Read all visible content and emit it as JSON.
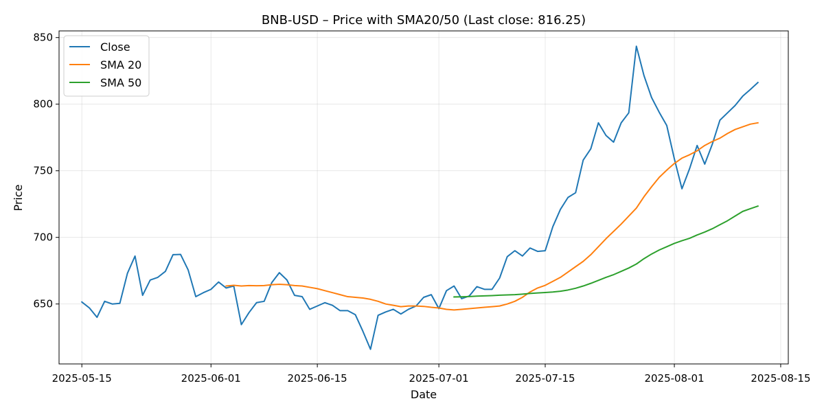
{
  "chart_data": {
    "type": "line",
    "title": "BNB-USD – Price with SMA20/50 (Last close: 816.25)",
    "xlabel": "Date",
    "ylabel": "Price",
    "xlim": [
      "2025-05-12",
      "2025-08-16"
    ],
    "ylim": [
      605,
      855
    ],
    "x_ticks": [
      "2025-05-15",
      "2025-06-01",
      "2025-06-15",
      "2025-07-01",
      "2025-07-15",
      "2025-08-01",
      "2025-08-15"
    ],
    "y_ticks": [
      650,
      700,
      750,
      800,
      850
    ],
    "grid": true,
    "legend_position": "top-left",
    "start_date": "2025-05-15",
    "series": [
      {
        "name": "Close",
        "color": "#1f77b4",
        "values": [
          651.5,
          647,
          640,
          652,
          650,
          650.5,
          673,
          686,
          656.5,
          668,
          670,
          674.5,
          687,
          687.2,
          675.5,
          655.5,
          658.5,
          661,
          666.5,
          662,
          663.5,
          634.5,
          643.5,
          651,
          652,
          666,
          673.5,
          668,
          656.5,
          655.5,
          646,
          648.5,
          651,
          649,
          645,
          645,
          642,
          629.5,
          616,
          641.5,
          644,
          646,
          642.5,
          646,
          648.5,
          655,
          657,
          646.5,
          660,
          663.5,
          654,
          656,
          663,
          661,
          661,
          669.5,
          685.5,
          690,
          686,
          692,
          689.5,
          690,
          708,
          721,
          730,
          733.5,
          758,
          766.5,
          786,
          776.5,
          771.5,
          786,
          793.5,
          843.5,
          821.5,
          805,
          794,
          784,
          759,
          736.5,
          751.5,
          769,
          755,
          770,
          788,
          793.5,
          799,
          806,
          811,
          816.25
        ]
      },
      {
        "name": "SMA 20",
        "color": "#ff7f0e",
        "values": [
          null,
          null,
          null,
          null,
          null,
          null,
          null,
          null,
          null,
          null,
          null,
          null,
          null,
          null,
          null,
          null,
          null,
          null,
          null,
          663.5,
          664,
          663.5,
          663.8,
          663.7,
          663.8,
          664.5,
          664.8,
          664.5,
          663.8,
          663.5,
          662.5,
          661.5,
          660,
          658.5,
          657,
          655.5,
          655,
          654.5,
          653.5,
          652,
          650,
          649,
          648,
          648.5,
          648.5,
          648.2,
          647.5,
          647,
          646,
          645.5,
          646,
          646.5,
          647,
          647.5,
          648,
          648.5,
          650,
          652,
          655,
          659,
          662,
          664,
          667,
          670,
          674,
          678,
          682,
          687,
          693,
          699,
          704.5,
          710,
          716,
          722,
          730.5,
          738,
          745,
          750.5,
          755.5,
          759.5,
          762,
          765,
          769,
          772,
          774.5,
          778,
          781,
          783,
          785,
          786
        ]
      },
      {
        "name": "SMA 50",
        "color": "#2ca02c",
        "values": [
          null,
          null,
          null,
          null,
          null,
          null,
          null,
          null,
          null,
          null,
          null,
          null,
          null,
          null,
          null,
          null,
          null,
          null,
          null,
          null,
          null,
          null,
          null,
          null,
          null,
          null,
          null,
          null,
          null,
          null,
          null,
          null,
          null,
          null,
          null,
          null,
          null,
          null,
          null,
          null,
          null,
          null,
          null,
          null,
          null,
          null,
          null,
          null,
          null,
          655.3,
          655.4,
          655.6,
          655.9,
          656.1,
          656.3,
          656.6,
          656.8,
          657,
          657.4,
          657.9,
          658.3,
          658.6,
          659,
          659.6,
          660.5,
          661.8,
          663.5,
          665.5,
          667.7,
          670,
          672,
          674.5,
          677,
          680,
          684,
          687.5,
          690.5,
          693,
          695.5,
          697.5,
          699.3,
          701.8,
          704,
          706.5,
          709.5,
          712.5,
          716,
          719.5,
          721.5,
          723.5
        ]
      }
    ]
  }
}
